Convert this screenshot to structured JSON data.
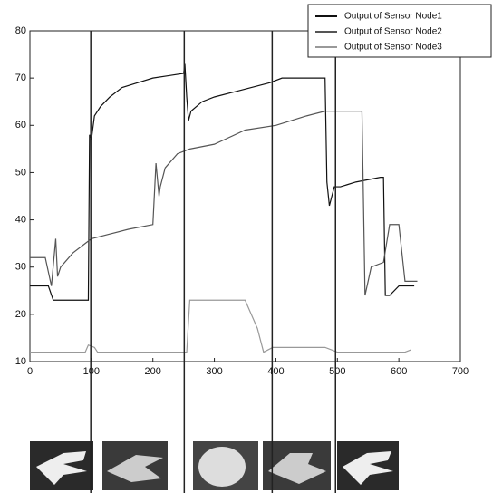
{
  "chart_data": {
    "type": "line",
    "xlim": [
      0,
      700
    ],
    "ylim": [
      10,
      80
    ],
    "xticks": [
      0,
      100,
      200,
      300,
      400,
      500,
      600,
      700
    ],
    "yticks": [
      10,
      20,
      30,
      40,
      50,
      60,
      70,
      80
    ],
    "vlines": [
      99,
      251,
      394,
      497
    ],
    "series": [
      {
        "name": "Output of Sensor Node1",
        "color": "#111111",
        "x": [
          0,
          30,
          38,
          45,
          95,
          97,
          100,
          105,
          115,
          130,
          150,
          175,
          200,
          225,
          250,
          252,
          255,
          258,
          262,
          280,
          300,
          330,
          360,
          390,
          410,
          480,
          483,
          487,
          495,
          505,
          530,
          570,
          575,
          578,
          585,
          600,
          625
        ],
        "values": [
          26,
          26,
          23,
          23,
          23,
          58,
          57,
          62,
          64,
          66,
          68,
          69,
          70,
          70.5,
          71,
          73,
          66,
          61,
          63,
          65,
          66,
          67,
          68,
          69,
          70,
          70,
          48,
          43,
          47,
          47,
          48,
          49,
          49,
          24,
          24,
          26,
          26
        ]
      },
      {
        "name": "Output of Sensor Node2",
        "color": "#555555",
        "x": [
          0,
          25,
          35,
          42,
          45,
          50,
          70,
          90,
          100,
          130,
          160,
          200,
          205,
          210,
          212,
          220,
          240,
          260,
          300,
          350,
          400,
          450,
          480,
          540,
          545,
          555,
          575,
          585,
          600,
          610,
          630
        ],
        "values": [
          32,
          32,
          26,
          36,
          28,
          30,
          33,
          35,
          36,
          37,
          38,
          39,
          52,
          45,
          47,
          51,
          54,
          55,
          56,
          59,
          60,
          62,
          63,
          63,
          24,
          30,
          31,
          39,
          39,
          27,
          27
        ]
      },
      {
        "name": "Output of Sensor Node3",
        "color": "#999999",
        "x": [
          0,
          90,
          95,
          105,
          110,
          255,
          260,
          350,
          360,
          370,
          380,
          395,
          480,
          500,
          610,
          620
        ],
        "values": [
          12,
          12,
          13.5,
          13,
          12,
          12,
          23,
          23,
          20,
          17,
          12,
          13,
          13,
          12,
          12,
          12.5
        ]
      }
    ]
  }
}
